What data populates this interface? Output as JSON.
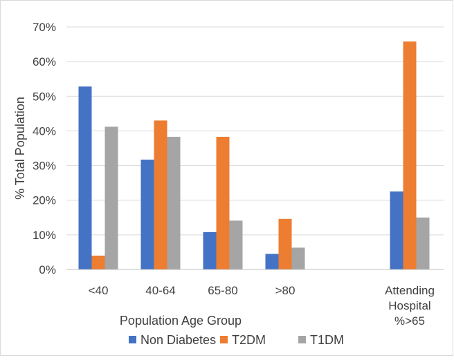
{
  "chart_data": {
    "type": "bar",
    "title": "",
    "xlabel": "Population Age Group",
    "ylabel": "% Total Population",
    "ylim": [
      0,
      70
    ],
    "yticks": [
      0,
      10,
      20,
      30,
      40,
      50,
      60,
      70
    ],
    "ytick_labels": [
      "0%",
      "10%",
      "20%",
      "30%",
      "40%",
      "50%",
      "60%",
      "70%"
    ],
    "y_format": "percent",
    "grid": true,
    "legend_position": "bottom",
    "categories": [
      {
        "lines": [
          "<40"
        ],
        "gap_before": false
      },
      {
        "lines": [
          "40-64"
        ],
        "gap_before": false
      },
      {
        "lines": [
          "65-80"
        ],
        "gap_before": false
      },
      {
        "lines": [
          ">80"
        ],
        "gap_before": false
      },
      {
        "lines": [
          "Attending",
          "Hospital",
          "%>65"
        ],
        "gap_before": true
      }
    ],
    "series": [
      {
        "name": "Non Diabetes",
        "color": "#4472c4",
        "values": [
          52.8,
          31.7,
          10.8,
          4.5,
          22.5
        ]
      },
      {
        "name": "T2DM",
        "color": "#ed7d31",
        "values": [
          4.0,
          43.0,
          38.3,
          14.6,
          65.8
        ]
      },
      {
        "name": "T1DM",
        "color": "#a5a5a5",
        "values": [
          41.2,
          38.3,
          14.1,
          6.3,
          15.0
        ]
      }
    ]
  }
}
